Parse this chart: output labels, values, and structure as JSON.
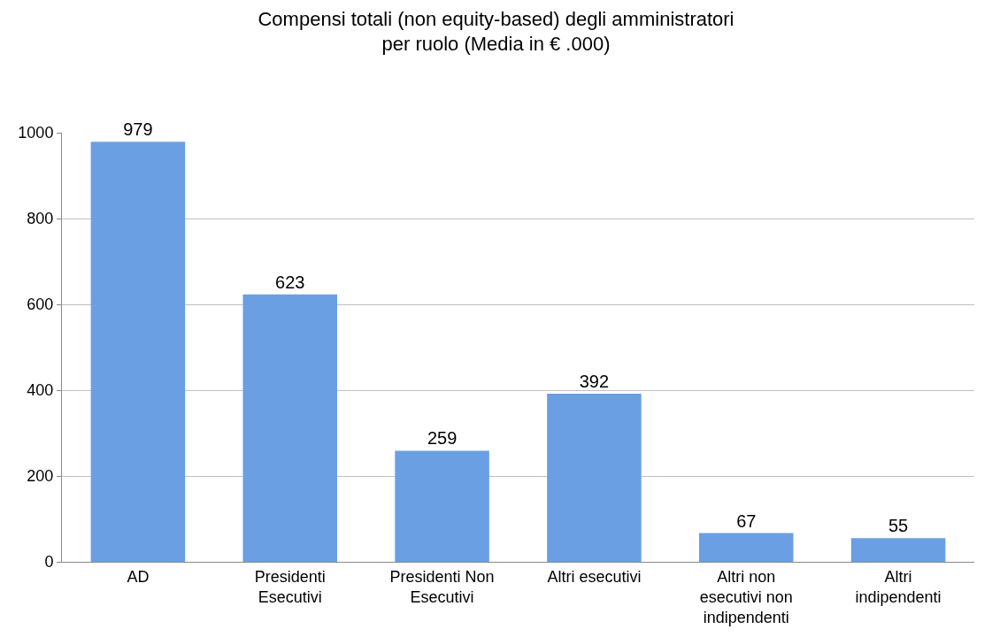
{
  "chart_data": {
    "type": "bar",
    "title": "Compensi totali (non equity-based) degli amministratori\nper ruolo (Media in € .000)",
    "categories": [
      "AD",
      "Presidenti\nEsecutivi",
      "Presidenti Non\nEsecutivi",
      "Altri esecutivi",
      "Altri non\nesecutivi non\nindipendenti",
      "Altri\nindipendenti"
    ],
    "values": [
      979,
      623,
      259,
      392,
      67,
      55
    ],
    "color": "#6a9fe3",
    "ylim": [
      0,
      1000
    ],
    "yticks": [
      0,
      200,
      400,
      600,
      800,
      1000
    ],
    "grid": "y",
    "data_labels": true
  }
}
